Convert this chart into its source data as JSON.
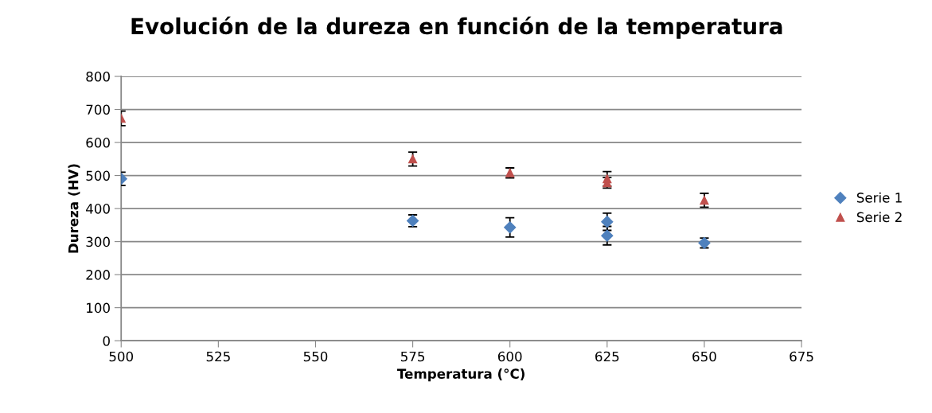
{
  "chart_data": {
    "type": "scatter",
    "title": "Evolución de la dureza en función de la temperatura",
    "xlabel": "Temperatura (°C)",
    "ylabel": "Dureza (HV)",
    "series": [
      {
        "name": "Serie 1",
        "color": "#4f81bd",
        "marker": "diamond",
        "x": [
          500,
          575,
          600,
          625,
          625,
          650
        ],
        "values": [
          490,
          363,
          343,
          360,
          318,
          296
        ],
        "errors": [
          20,
          18,
          29,
          26,
          28,
          15
        ]
      },
      {
        "name": "Serie 2",
        "color": "#c0504d",
        "marker": "triangle",
        "x": [
          500,
          575,
          600,
          625,
          625,
          650
        ],
        "values": [
          673,
          550,
          508,
          490,
          478,
          425
        ],
        "errors": [
          22,
          21,
          15,
          22,
          16,
          21
        ]
      }
    ],
    "xlim": [
      500,
      675
    ],
    "xticks": [
      500,
      525,
      550,
      575,
      600,
      625,
      650,
      675
    ],
    "ylim": [
      0,
      800
    ],
    "yticks": [
      0,
      100,
      200,
      300,
      400,
      500,
      600,
      700,
      800
    ],
    "grid": "y",
    "legend": "right"
  }
}
